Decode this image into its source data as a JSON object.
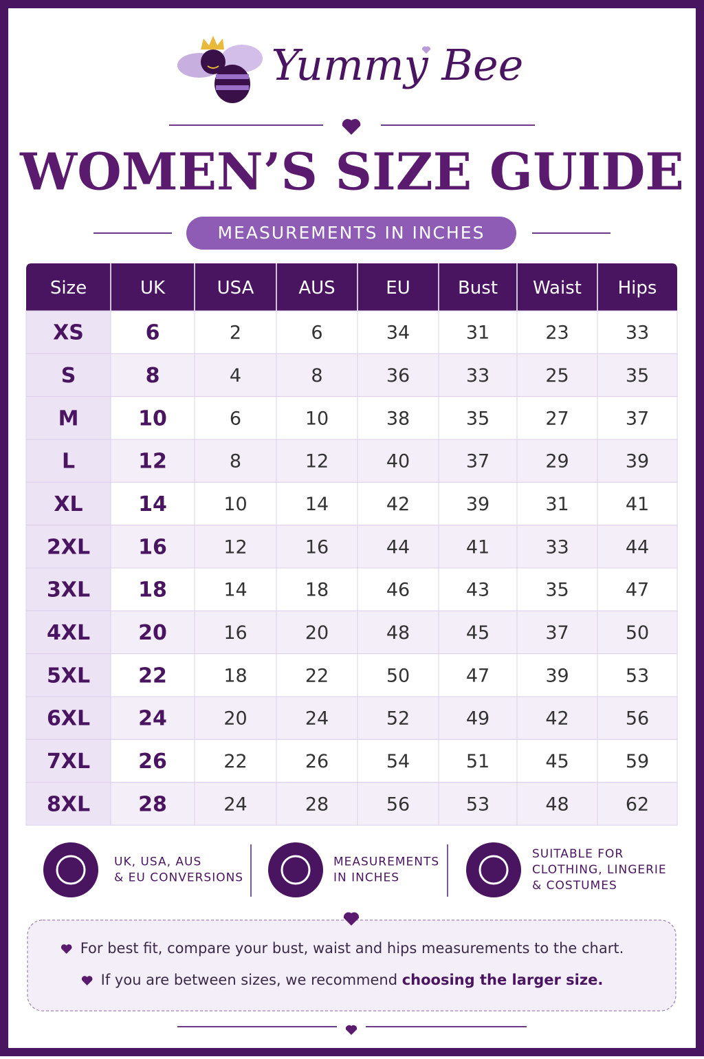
{
  "header": {
    "brand": "Yummy Bee",
    "title": "WOMEN’S SIZE GUIDE",
    "subtitle": "MEASUREMENTS IN INCHES"
  },
  "table": {
    "headers": [
      "Size",
      "UK",
      "USA",
      "AUS",
      "EU",
      "Bust",
      "Waist",
      "Hips"
    ],
    "rows": [
      [
        "XS",
        6,
        2,
        6,
        34,
        31,
        23,
        33
      ],
      [
        "S",
        8,
        4,
        8,
        36,
        33,
        25,
        35
      ],
      [
        "M",
        10,
        6,
        10,
        38,
        35,
        27,
        37
      ],
      [
        "L",
        12,
        8,
        12,
        40,
        37,
        29,
        39
      ],
      [
        "XL",
        14,
        10,
        14,
        42,
        39,
        31,
        41
      ],
      [
        "2XL",
        16,
        12,
        16,
        44,
        41,
        33,
        44
      ],
      [
        "3XL",
        18,
        14,
        18,
        46,
        43,
        35,
        47
      ],
      [
        "4XL",
        20,
        16,
        20,
        48,
        45,
        37,
        50
      ],
      [
        "5XL",
        22,
        18,
        22,
        50,
        47,
        39,
        53
      ],
      [
        "6XL",
        24,
        20,
        24,
        52,
        49,
        42,
        56
      ],
      [
        "7XL",
        26,
        22,
        26,
        54,
        51,
        45,
        59
      ],
      [
        "8XL",
        28,
        24,
        28,
        56,
        53,
        48,
        62
      ]
    ]
  },
  "features": [
    {
      "lines": [
        "UK, USA, AUS",
        "& EU CONVERSIONS"
      ]
    },
    {
      "lines": [
        "MEASUREMENTS",
        "IN INCHES"
      ]
    },
    {
      "lines": [
        "SUITABLE FOR",
        "CLOTHING, LINGERIE",
        "& COSTUMES"
      ]
    }
  ],
  "notes": [
    {
      "text": "For best fit, compare your bust, waist and hips measurements to the chart."
    },
    {
      "text": "If you are between sizes, we recommend ",
      "bold": "choosing the larger size."
    }
  ]
}
